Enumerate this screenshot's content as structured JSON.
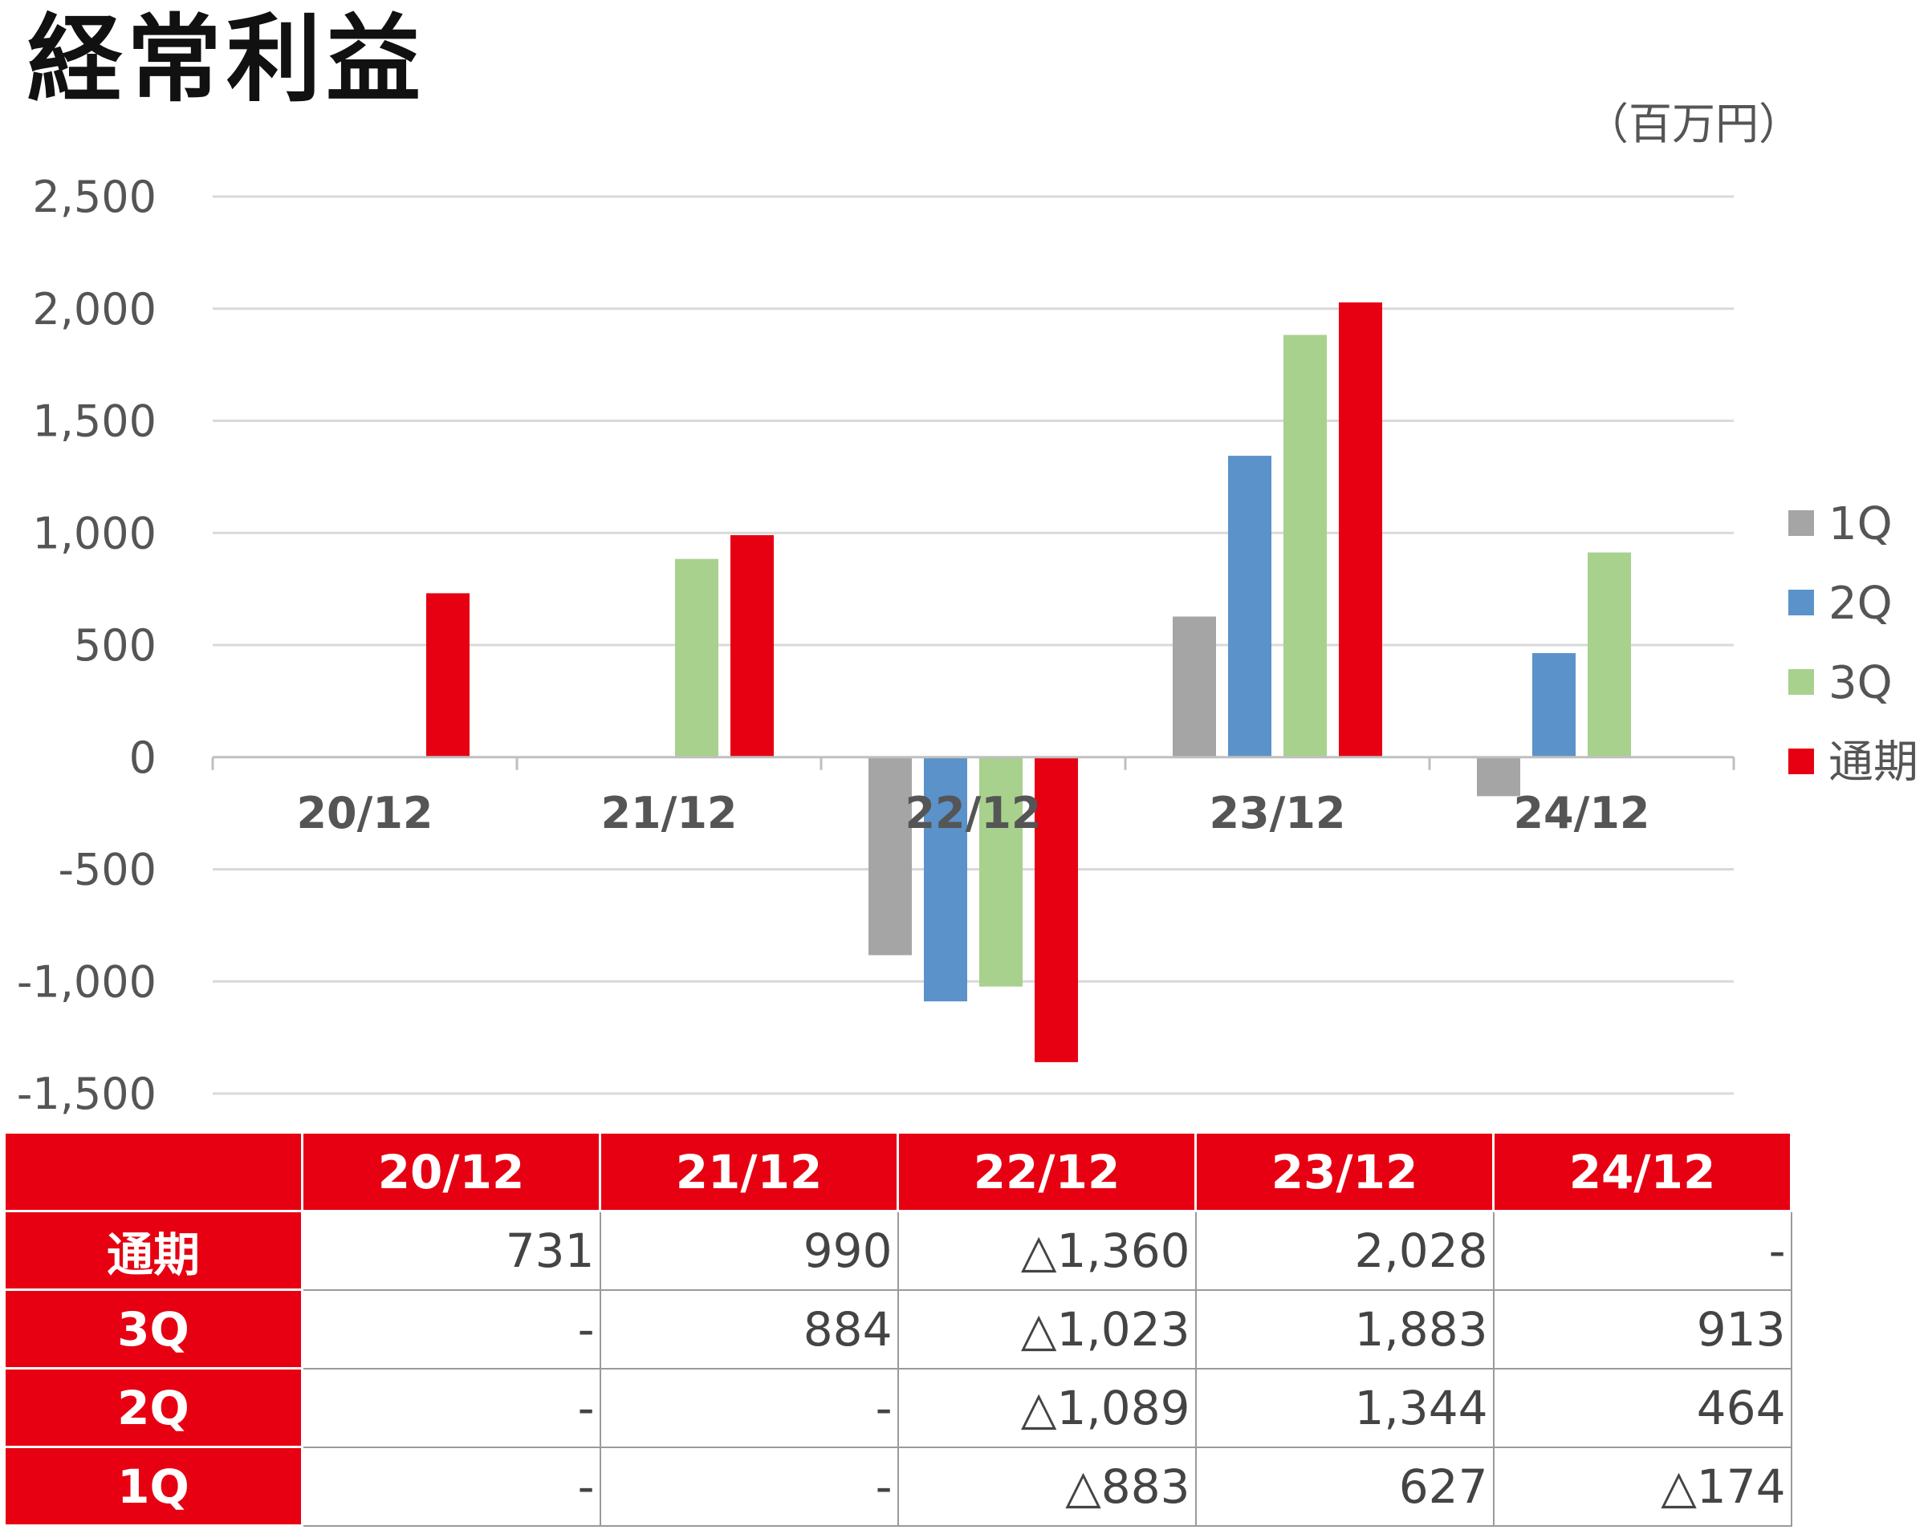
{
  "title": "経常利益",
  "unit": "（百万円）",
  "colors": {
    "1Q": "#a5a5a5",
    "2Q": "#5b92c9",
    "3Q": "#a9d18e",
    "通期": "#e60012",
    "grid": "#d9d9d9",
    "axis": "#bfbfbf"
  },
  "chart_data": {
    "type": "bar",
    "categories": [
      "20/12",
      "21/12",
      "22/12",
      "23/12",
      "24/12"
    ],
    "ylim": [
      -1500,
      2500
    ],
    "yticks": [
      "2,500",
      "2,000",
      "1,500",
      "1,000",
      "500",
      "0",
      "-500",
      "-1,000",
      "-1,500"
    ],
    "ytick_values": [
      2500,
      2000,
      1500,
      1000,
      500,
      0,
      -500,
      -1000,
      -1500
    ],
    "grid": true,
    "legend_position": "right",
    "series": [
      {
        "name": "1Q",
        "values": [
          null,
          null,
          -883,
          627,
          -174
        ]
      },
      {
        "name": "2Q",
        "values": [
          null,
          null,
          -1089,
          1344,
          464
        ]
      },
      {
        "name": "3Q",
        "values": [
          null,
          884,
          -1023,
          1883,
          913
        ]
      },
      {
        "name": "通期",
        "values": [
          731,
          990,
          -1360,
          2028,
          null
        ]
      }
    ]
  },
  "table": {
    "columns": [
      "20/12",
      "21/12",
      "22/12",
      "23/12",
      "24/12"
    ],
    "rows": [
      {
        "label": "通期",
        "cells": [
          "731",
          "990",
          "△1,360",
          "2,028",
          "-"
        ]
      },
      {
        "label": "3Q",
        "cells": [
          "-",
          "884",
          "△1,023",
          "1,883",
          "913"
        ]
      },
      {
        "label": "2Q",
        "cells": [
          "-",
          "-",
          "△1,089",
          "1,344",
          "464"
        ]
      },
      {
        "label": "1Q",
        "cells": [
          "-",
          "-",
          "△883",
          "627",
          "△174"
        ]
      }
    ]
  }
}
